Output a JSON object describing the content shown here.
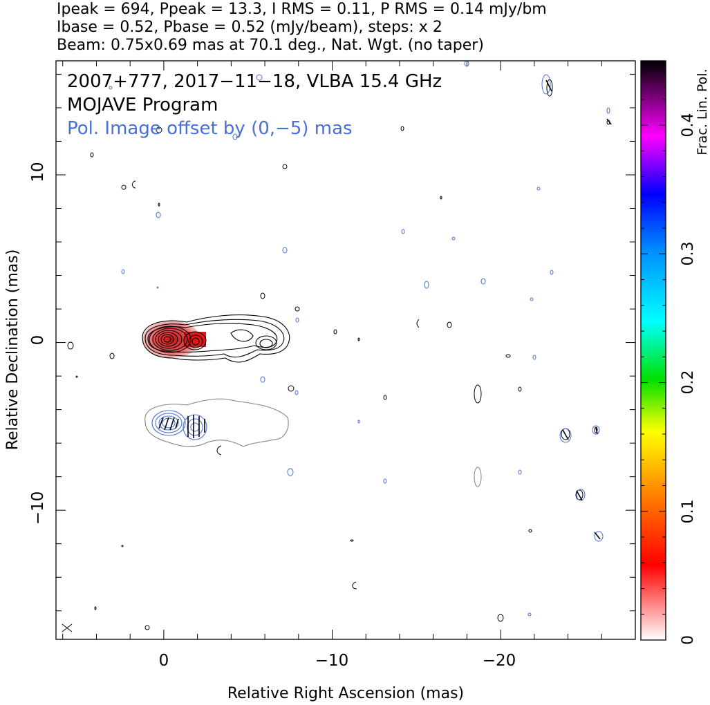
{
  "header": {
    "line1": "Ipeak = 694, Ppeak = 13.3, I RMS = 0.11, P RMS = 0.14 mJy/bm",
    "line2": "Ibase = 0.52, Pbase = 0.52 (mJy/beam), steps: x 2",
    "line3": "Beam: 0.75x0.69 mas at 70.1 deg., Nat. Wgt. (no taper)"
  },
  "annotations": {
    "source": "2007+777, 2017−11−18, VLBA 15.4 GHz",
    "program": "MOJAVE Program",
    "pol_offset": "Pol. Image offset by (0,−5) mas"
  },
  "axes": {
    "xlabel": "Relative Right Ascension (mas)",
    "ylabel": "Relative Declination (mas)",
    "x_ticks": [
      "0",
      "−10",
      "−20"
    ],
    "y_ticks": [
      "10",
      "0",
      "−10"
    ],
    "xlim": [
      6.4,
      -28
    ],
    "ylim": [
      -17.7,
      16.8
    ]
  },
  "colorbar": {
    "label": "Frac. Lin. Pol.",
    "ticks": [
      "0",
      "0.1",
      "0.2",
      "0.3",
      "0.4"
    ],
    "range": [
      0,
      0.45
    ]
  },
  "colors": {
    "stokes_i_contours": "#000000",
    "pol_contours": "#4a6fd4",
    "pol_base_contour": "#808080",
    "frac_pol_red": "#e82020"
  }
}
